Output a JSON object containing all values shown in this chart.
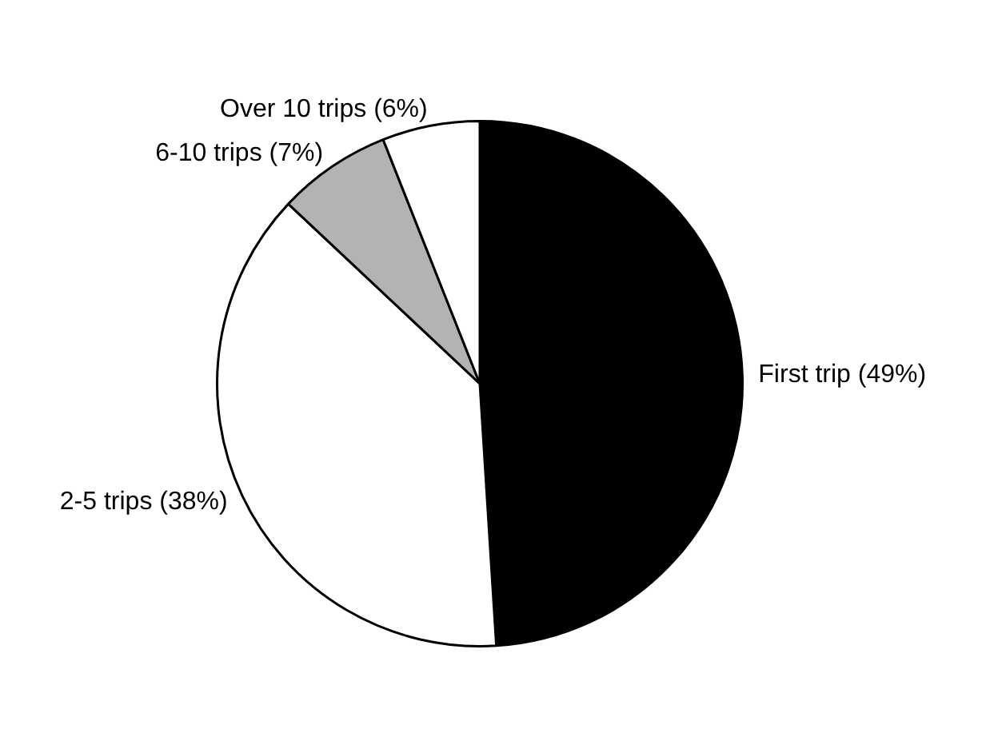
{
  "chart_data": {
    "type": "pie",
    "categories": [
      "First trip (49%)",
      "2-5 trips (38%)",
      "6-10 trips (7%)",
      "Over 10 trips (6%)"
    ],
    "values": [
      49,
      38,
      7,
      6
    ],
    "colors": [
      "#000000",
      "#ffffff",
      "#b3b3b3",
      "#ffffff"
    ],
    "legend": false
  }
}
